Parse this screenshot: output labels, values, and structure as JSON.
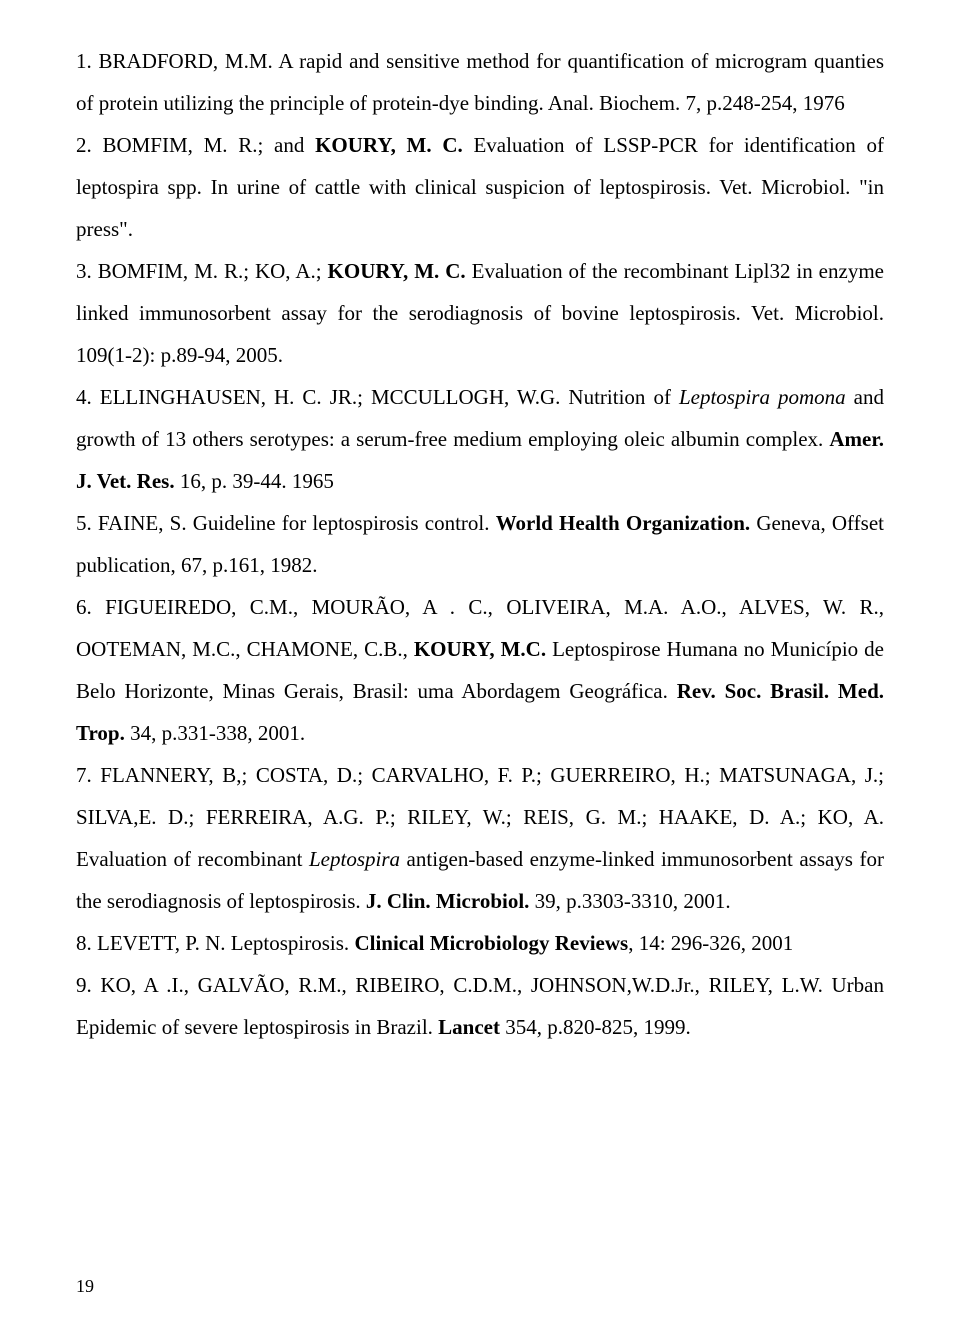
{
  "page_number": "19",
  "references": [
    {
      "segments": [
        {
          "t": "1. BRADFORD, M.M. A rapid and sensitive method for quantification of microgram quanties of protein utilizing the principle of protein-dye binding. Anal. Biochem. 7, p.248-254, 1976"
        }
      ]
    },
    {
      "segments": [
        {
          "t": "2. BOMFIM, M. R.; and "
        },
        {
          "t": "KOURY, M. C.",
          "b": true
        },
        {
          "t": " Evaluation of LSSP-PCR for identification of leptospira spp. In urine of cattle with clinical suspicion of leptospirosis. Vet. Microbiol. \"in press\"."
        }
      ]
    },
    {
      "segments": [
        {
          "t": "3. BOMFIM, M. R.; KO, A.; "
        },
        {
          "t": "KOURY, M. C.",
          "b": true
        },
        {
          "t": " Evaluation of the recombinant Lipl32 in enzyme linked immunosorbent assay for the serodiagnosis of bovine leptospirosis. Vet. Microbiol. 109(1-2): p.89-94, 2005."
        }
      ]
    },
    {
      "segments": [
        {
          "t": "4. ELLINGHAUSEN, H. C. JR.; MCCULLOGH, W.G. Nutrition of "
        },
        {
          "t": "Leptospira pomona",
          "i": true
        },
        {
          "t": " and growth of 13 others serotypes: a serum-free medium employing oleic albumin complex. "
        },
        {
          "t": "Amer. J. Vet. Res.",
          "b": true
        },
        {
          "t": " 16, p. 39-44. 1965"
        }
      ]
    },
    {
      "segments": [
        {
          "t": "5. FAINE, S. Guideline for leptospirosis control. "
        },
        {
          "t": "World Health Organization.",
          "b": true
        },
        {
          "t": " Geneva, Offset publication, 67, p.161, 1982."
        }
      ]
    },
    {
      "segments": [
        {
          "t": "6. FIGUEIREDO, C.M., MOURÃO, A . C., OLIVEIRA, M.A. A.O., ALVES, W. R., OOTEMAN, M.C., CHAMONE, C.B., "
        },
        {
          "t": "KOURY, M.C.",
          "b": true
        },
        {
          "t": " Leptospirose Humana no Município de Belo Horizonte, Minas Gerais, Brasil: uma Abordagem Geográfica. "
        },
        {
          "t": "Rev. Soc. Brasil. Med. Trop.",
          "b": true
        },
        {
          "t": " 34, p.331-338, 2001."
        }
      ]
    },
    {
      "segments": [
        {
          "t": "7. FLANNERY, B,; COSTA, D.; CARVALHO, F. P.; GUERREIRO, H.; MATSUNAGA, J.; SILVA,E. D.; FERREIRA, A.G. P.; RILEY, W.; REIS, G. M.; HAAKE, D. A.; KO, A. Evaluation of recombinant "
        },
        {
          "t": "Leptospira",
          "i": true
        },
        {
          "t": " antigen-based enzyme-linked immunosorbent assays for the serodiagnosis of leptospirosis. "
        },
        {
          "t": "J. Clin. Microbiol.",
          "b": true
        },
        {
          "t": " 39, p.3303-3310, 2001."
        }
      ]
    },
    {
      "segments": [
        {
          "t": "8.  LEVETT, P. N. Leptospirosis. "
        },
        {
          "t": "Clinical Microbiology Reviews",
          "b": true
        },
        {
          "t": ", 14: 296-326, 2001"
        }
      ]
    },
    {
      "segments": [
        {
          "t": "9. KO, A .I., GALVÃO, R.M., RIBEIRO, C.D.M., JOHNSON,W.D.Jr., RILEY, L.W. Urban Epidemic of severe leptospirosis in Brazil. "
        },
        {
          "t": "Lancet",
          "b": true
        },
        {
          "t": " 354, p.820-825, 1999."
        }
      ]
    }
  ]
}
